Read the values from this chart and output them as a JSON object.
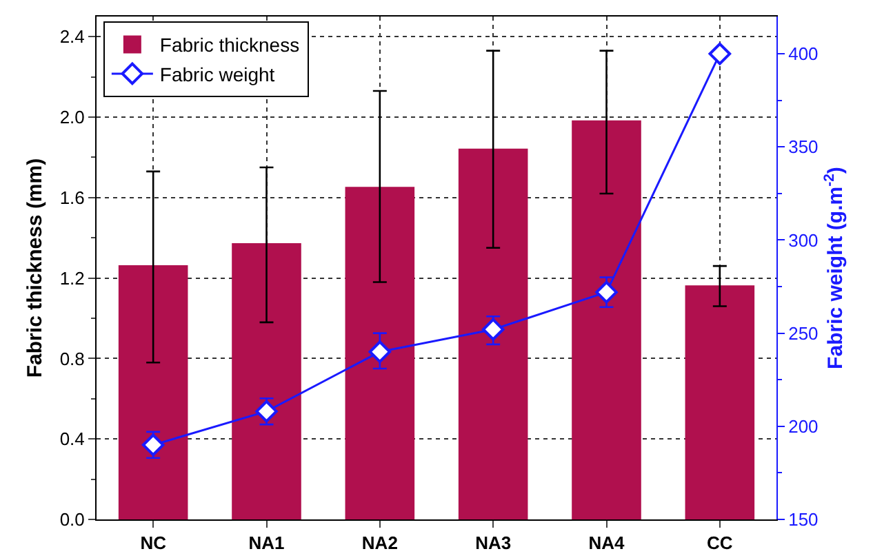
{
  "chart_data": {
    "type": "bar",
    "categories": [
      "NC",
      "NA1",
      "NA2",
      "NA3",
      "NA4",
      "CC"
    ],
    "ylabel": "Fabric thickness (mm)",
    "y2label": "Fabric weight (g.m$^{-2}$)",
    "series": [
      {
        "name": "Fabric thickness",
        "color": "#b0104e",
        "values": [
          1.26,
          1.37,
          1.65,
          1.84,
          1.98,
          1.16
        ],
        "errors": [
          [
            0.78,
            1.73
          ],
          [
            0.98,
            1.75
          ],
          [
            1.18,
            2.13
          ],
          [
            1.35,
            2.33
          ],
          [
            1.62,
            2.33
          ],
          [
            1.06,
            1.26
          ]
        ]
      },
      {
        "name": "Fabric weight",
        "type": "line",
        "axis": "y2",
        "color": "#1a1aff",
        "marker": "diamond",
        "values": [
          190,
          208,
          240,
          252,
          272,
          400
        ],
        "errors": [
          [
            183,
            197
          ],
          [
            201,
            215
          ],
          [
            231,
            250
          ],
          [
            244,
            259
          ],
          [
            264,
            280
          ],
          null
        ]
      }
    ],
    "ylim": [
      0,
      2.5
    ],
    "yticks": [
      {
        "value": 0,
        "label": "0.0"
      },
      0.4,
      0.8,
      1.2,
      1.6,
      {
        "value": 2,
        "label": "2.0"
      },
      2.4
    ],
    "y2lim": [
      150,
      420
    ],
    "y2ticks": [
      150,
      200,
      250,
      300,
      350,
      400
    ],
    "grid": true,
    "legend": "top left"
  }
}
